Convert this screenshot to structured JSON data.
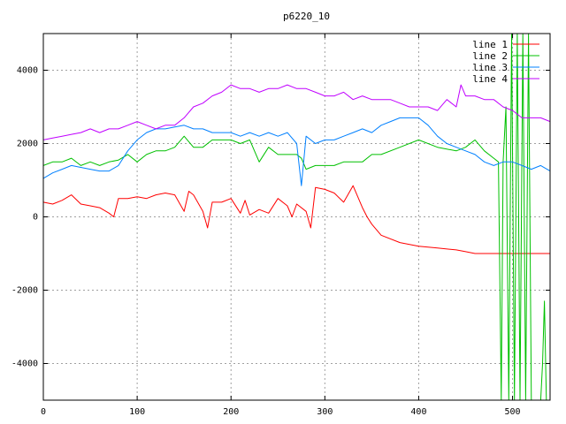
{
  "chart_data": {
    "type": "line",
    "title": "p6220_10",
    "xlim": [
      0,
      540
    ],
    "ylim": [
      -5000,
      5000
    ],
    "xticks": [
      0,
      100,
      200,
      300,
      400,
      500
    ],
    "yticks": [
      -4000,
      -2000,
      0,
      2000,
      4000
    ],
    "grid": true,
    "legend_position": "top-right",
    "series": [
      {
        "name": "line 1",
        "color": "#ff0000",
        "x": [
          0,
          10,
          20,
          30,
          40,
          50,
          60,
          70,
          75,
          80,
          90,
          100,
          110,
          120,
          130,
          140,
          150,
          155,
          160,
          170,
          175,
          180,
          190,
          200,
          210,
          215,
          220,
          230,
          240,
          250,
          260,
          265,
          270,
          280,
          285,
          290,
          300,
          310,
          320,
          330,
          340,
          345,
          350,
          360,
          380,
          400,
          420,
          440,
          450,
          460,
          470,
          480,
          490,
          500,
          510,
          520,
          530,
          540
        ],
        "y": [
          400,
          350,
          450,
          600,
          350,
          300,
          250,
          100,
          0,
          500,
          500,
          550,
          500,
          600,
          650,
          600,
          150,
          700,
          600,
          150,
          -300,
          400,
          400,
          500,
          100,
          450,
          50,
          200,
          100,
          500,
          300,
          0,
          350,
          150,
          -300,
          800,
          750,
          650,
          400,
          850,
          250,
          0,
          -200,
          -500,
          -700,
          -800,
          -850,
          -900,
          -950,
          -1000,
          -1000,
          -1000,
          -1000,
          -1000,
          -1000,
          -1000,
          -1000,
          -1000
        ]
      },
      {
        "name": "line 2",
        "color": "#00c000",
        "x": [
          0,
          10,
          20,
          30,
          40,
          50,
          60,
          70,
          80,
          90,
          100,
          110,
          120,
          130,
          140,
          150,
          160,
          170,
          180,
          190,
          200,
          210,
          220,
          230,
          240,
          250,
          260,
          270,
          275,
          280,
          290,
          300,
          310,
          320,
          330,
          340,
          350,
          360,
          380,
          400,
          420,
          440,
          450,
          460,
          470,
          480,
          485,
          488,
          490,
          493,
          496,
          499,
          502,
          505,
          508,
          511,
          514,
          517,
          520,
          525,
          530,
          532,
          534,
          536,
          540
        ],
        "y": [
          1400,
          1500,
          1500,
          1600,
          1400,
          1500,
          1400,
          1500,
          1550,
          1700,
          1500,
          1700,
          1800,
          1800,
          1900,
          2200,
          1900,
          1900,
          2100,
          2100,
          2100,
          2000,
          2100,
          1500,
          1900,
          1700,
          1700,
          1700,
          1600,
          1300,
          1400,
          1400,
          1400,
          1500,
          1500,
          1500,
          1700,
          1700,
          1900,
          2100,
          1900,
          1800,
          1900,
          2100,
          1800,
          1600,
          1500,
          -5000,
          1500,
          3000,
          -5000,
          5000,
          -5000,
          5000,
          -5000,
          5000,
          -5000,
          5000,
          -5000,
          -5000,
          -5000,
          -4000,
          -2300,
          -5000,
          -5000
        ]
      },
      {
        "name": "line 3",
        "color": "#0080ff",
        "x": [
          0,
          10,
          20,
          30,
          40,
          50,
          60,
          70,
          80,
          90,
          100,
          110,
          120,
          130,
          140,
          150,
          160,
          170,
          180,
          190,
          200,
          210,
          220,
          230,
          240,
          250,
          260,
          270,
          275,
          280,
          290,
          300,
          310,
          320,
          330,
          340,
          350,
          360,
          370,
          380,
          390,
          400,
          410,
          420,
          430,
          440,
          450,
          460,
          470,
          480,
          490,
          500,
          510,
          520,
          530,
          540
        ],
        "y": [
          1050,
          1200,
          1300,
          1400,
          1350,
          1300,
          1250,
          1250,
          1400,
          1800,
          2100,
          2300,
          2400,
          2400,
          2450,
          2500,
          2400,
          2400,
          2300,
          2300,
          2300,
          2200,
          2300,
          2200,
          2300,
          2200,
          2300,
          2000,
          850,
          2200,
          2000,
          2100,
          2100,
          2200,
          2300,
          2400,
          2300,
          2500,
          2600,
          2700,
          2700,
          2700,
          2500,
          2200,
          2000,
          1900,
          1800,
          1700,
          1500,
          1400,
          1500,
          1500,
          1400,
          1300,
          1400,
          1250
        ]
      },
      {
        "name": "line 4",
        "color": "#c000ff",
        "x": [
          0,
          10,
          20,
          30,
          40,
          50,
          60,
          70,
          80,
          90,
          100,
          110,
          120,
          130,
          140,
          150,
          160,
          170,
          180,
          190,
          200,
          210,
          220,
          230,
          240,
          250,
          260,
          270,
          280,
          290,
          300,
          310,
          320,
          330,
          340,
          350,
          360,
          370,
          380,
          390,
          400,
          410,
          420,
          430,
          440,
          445,
          450,
          460,
          470,
          480,
          490,
          500,
          510,
          520,
          530,
          540
        ],
        "y": [
          2100,
          2150,
          2200,
          2250,
          2300,
          2400,
          2300,
          2400,
          2400,
          2500,
          2600,
          2500,
          2400,
          2500,
          2500,
          2700,
          3000,
          3100,
          3300,
          3400,
          3600,
          3500,
          3500,
          3400,
          3500,
          3500,
          3600,
          3500,
          3500,
          3400,
          3300,
          3300,
          3400,
          3200,
          3300,
          3200,
          3200,
          3200,
          3100,
          3000,
          3000,
          3000,
          2900,
          3200,
          3000,
          3600,
          3300,
          3300,
          3200,
          3200,
          3000,
          2900,
          2700,
          2700,
          2700,
          2600
        ]
      }
    ]
  }
}
